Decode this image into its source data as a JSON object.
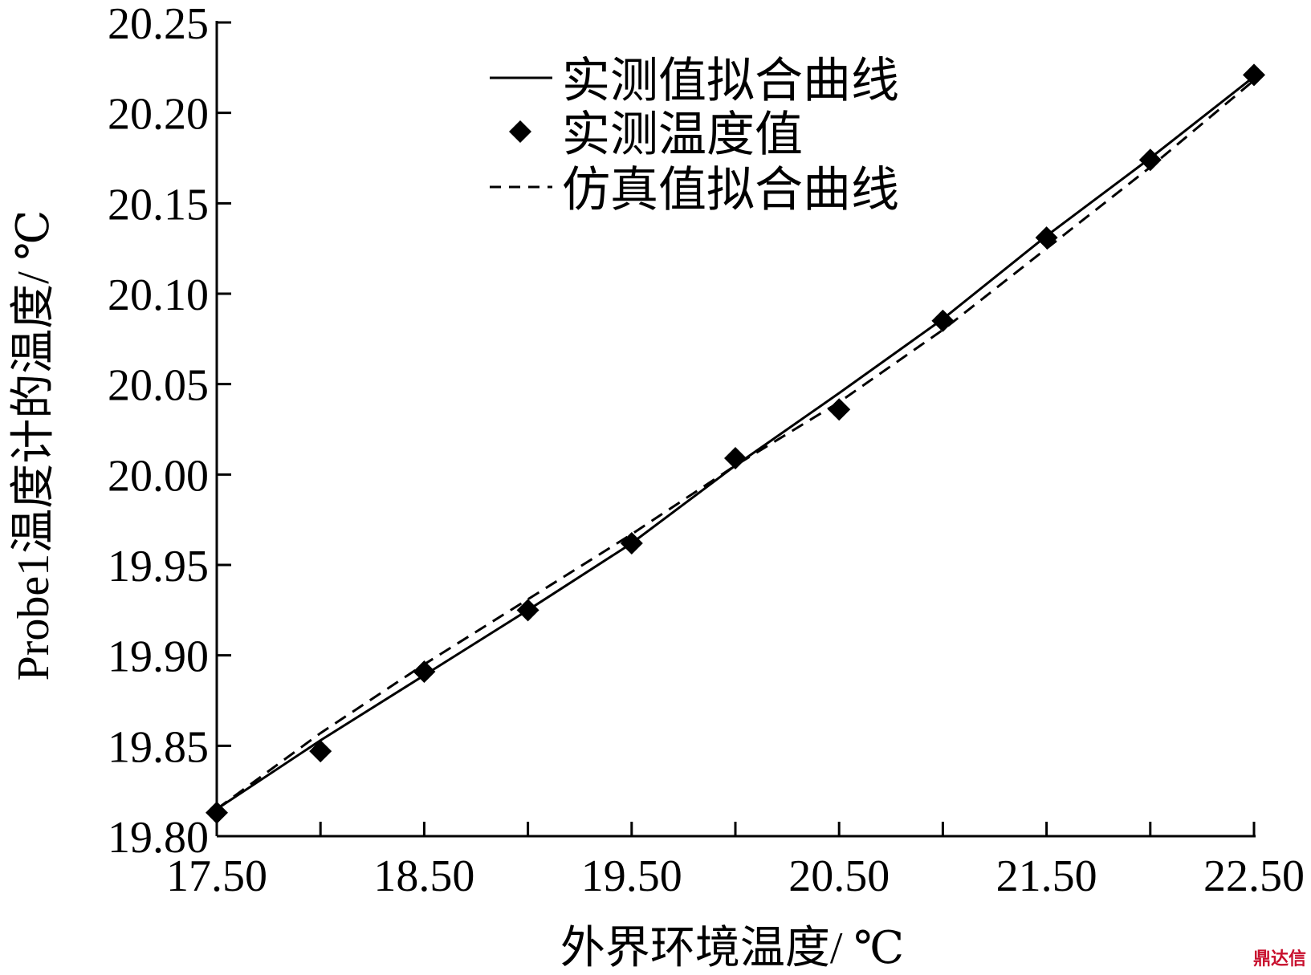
{
  "chart_data": {
    "type": "scatter",
    "xlabel": "外界环境温度/ ℃",
    "ylabel": "Probe1温度计的温度/ ℃",
    "xlim": [
      17.5,
      22.5
    ],
    "ylim": [
      19.8,
      20.25
    ],
    "x_ticks": [
      17.5,
      18.0,
      18.5,
      19.0,
      19.5,
      20.0,
      20.5,
      21.0,
      21.5,
      22.0,
      22.5
    ],
    "x_tick_labels": [
      "17.50",
      "18.50",
      "19.50",
      "20.50",
      "21.50",
      "22.50"
    ],
    "x_tick_label_values": [
      17.5,
      18.5,
      19.5,
      20.5,
      21.5,
      22.5
    ],
    "y_ticks": [
      19.8,
      19.85,
      19.9,
      19.95,
      20.0,
      20.05,
      20.1,
      20.15,
      20.2,
      20.25
    ],
    "y_tick_labels": [
      "19.80",
      "19.85",
      "19.90",
      "19.95",
      "20.00",
      "20.05",
      "20.10",
      "20.15",
      "20.20",
      "20.25"
    ],
    "grid": false,
    "legend_position": "top-center",
    "series": [
      {
        "name": "实测值拟合曲线",
        "style": "solid-line",
        "x": [
          17.5,
          18.0,
          18.5,
          19.0,
          19.5,
          20.0,
          20.5,
          21.0,
          21.5,
          22.0,
          22.5
        ],
        "y": [
          19.815,
          19.853,
          19.889,
          19.925,
          19.962,
          20.005,
          20.045,
          20.086,
          20.132,
          20.175,
          20.22
        ]
      },
      {
        "name": "实测温度值",
        "style": "diamond-markers",
        "x": [
          17.5,
          18.0,
          18.5,
          19.0,
          19.5,
          20.0,
          20.5,
          21.0,
          21.5,
          22.0,
          22.5
        ],
        "y": [
          19.813,
          19.847,
          19.891,
          19.925,
          19.962,
          20.009,
          20.036,
          20.085,
          20.131,
          20.174,
          20.221
        ]
      },
      {
        "name": "仿真值拟合曲线",
        "style": "dashed-line",
        "x": [
          17.5,
          18.0,
          18.5,
          19.0,
          19.5,
          20.0,
          20.5,
          21.0,
          21.5,
          22.0,
          22.5
        ],
        "y": [
          19.815,
          19.857,
          19.895,
          19.931,
          19.967,
          20.005,
          20.04,
          20.08,
          20.125,
          20.17,
          20.218
        ]
      }
    ]
  },
  "watermark": {
    "text": "鼎达信",
    "color": "#c8102e"
  }
}
